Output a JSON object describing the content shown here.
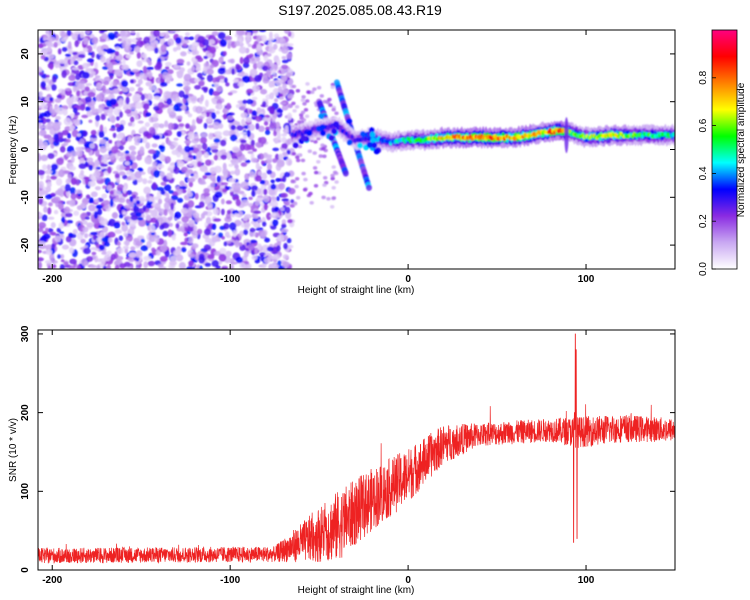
{
  "title": "S197.2025.085.08.43.R19",
  "chart_data": [
    {
      "type": "heatmap",
      "xlabel": "Height of straight line (km)",
      "ylabel": "Frequency (Hz)",
      "xlim": [
        -208,
        150
      ],
      "ylim": [
        -25,
        25
      ],
      "xticks": [
        -200,
        -100,
        0,
        100
      ],
      "yticks": [
        -20,
        -10,
        0,
        10,
        20
      ],
      "colorbar": {
        "label": "Normalized spectral amplitude",
        "range": [
          0,
          1
        ],
        "ticks": [
          "0.0",
          "0.2",
          "0.4",
          "0.6",
          "0.8"
        ],
        "colors": [
          "#ffffff",
          "#c9a8f2",
          "#8a2be2",
          "#0000ff",
          "#00ffff",
          "#00ff00",
          "#ffff00",
          "#ff8000",
          "#ff0000",
          "#ff0080"
        ]
      },
      "noise_region_x": [
        -208,
        -65
      ],
      "ridge": [
        {
          "x": -65,
          "f": 3.0,
          "amp": 0.35
        },
        {
          "x": -55,
          "f": 4.0,
          "amp": 0.3
        },
        {
          "x": -40,
          "f": 5.0,
          "amp": 0.35
        },
        {
          "x": -30,
          "f": 2.0,
          "amp": 0.3
        },
        {
          "x": -20,
          "f": 2.5,
          "amp": 0.4
        },
        {
          "x": -10,
          "f": 1.5,
          "amp": 0.45
        },
        {
          "x": 0,
          "f": 2.0,
          "amp": 0.55
        },
        {
          "x": 10,
          "f": 2.0,
          "amp": 0.65
        },
        {
          "x": 20,
          "f": 2.5,
          "amp": 0.8
        },
        {
          "x": 40,
          "f": 2.5,
          "amp": 0.9
        },
        {
          "x": 60,
          "f": 2.5,
          "amp": 0.85
        },
        {
          "x": 75,
          "f": 3.5,
          "amp": 0.8
        },
        {
          "x": 85,
          "f": 4.0,
          "amp": 0.9
        },
        {
          "x": 92,
          "f": 3.5,
          "amp": 0.6
        },
        {
          "x": 100,
          "f": 2.5,
          "amp": 0.65
        },
        {
          "x": 115,
          "f": 3.0,
          "amp": 0.75
        },
        {
          "x": 130,
          "f": 3.0,
          "amp": 0.6
        },
        {
          "x": 150,
          "f": 3.0,
          "amp": 0.55
        }
      ],
      "streaks": [
        {
          "x": [
            -50,
            -35
          ],
          "f": [
            10,
            -5
          ]
        },
        {
          "x": [
            -40,
            -22
          ],
          "f": [
            14,
            -8
          ]
        }
      ]
    },
    {
      "type": "line",
      "xlabel": "Height of straight line (km)",
      "ylabel": "SNR (10 * v/v)",
      "xlim": [
        -208,
        150
      ],
      "ylim": [
        0,
        305
      ],
      "xticks": [
        -200,
        -100,
        0,
        100
      ],
      "yticks": [
        0,
        100,
        200,
        300
      ],
      "color": "#ee2222",
      "envelope": [
        {
          "x": -208,
          "mean": 18,
          "spread": 10
        },
        {
          "x": -75,
          "mean": 20,
          "spread": 10
        },
        {
          "x": -60,
          "mean": 35,
          "spread": 25
        },
        {
          "x": -40,
          "mean": 55,
          "spread": 45
        },
        {
          "x": -20,
          "mean": 90,
          "spread": 40
        },
        {
          "x": 0,
          "mean": 120,
          "spread": 35
        },
        {
          "x": 20,
          "mean": 160,
          "spread": 25
        },
        {
          "x": 40,
          "mean": 172,
          "spread": 15
        },
        {
          "x": 60,
          "mean": 175,
          "spread": 15
        },
        {
          "x": 80,
          "mean": 178,
          "spread": 15
        },
        {
          "x": 95,
          "mean": 175,
          "spread": 20
        },
        {
          "x": 120,
          "mean": 180,
          "spread": 18
        },
        {
          "x": 150,
          "mean": 178,
          "spread": 15
        }
      ],
      "spikes": [
        {
          "x": 93.0,
          "y": 35
        },
        {
          "x": 93.5,
          "y": 200
        },
        {
          "x": 94.0,
          "y": 300
        },
        {
          "x": 94.5,
          "y": 280
        },
        {
          "x": 95.0,
          "y": 40
        }
      ]
    }
  ]
}
